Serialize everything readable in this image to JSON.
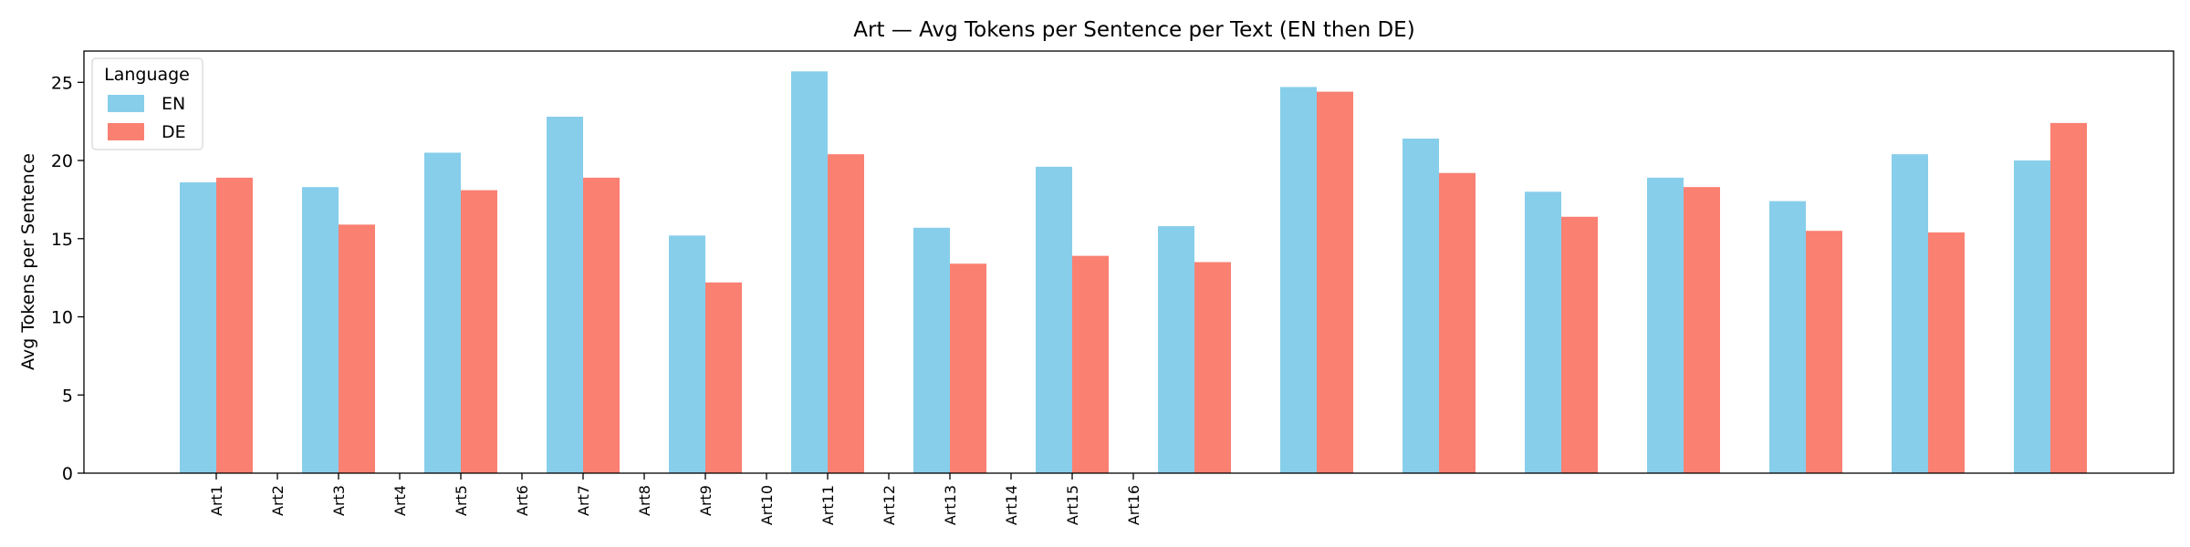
{
  "chart_data": {
    "type": "bar",
    "title": "Art — Avg Tokens per Sentence per Text (EN then DE)",
    "xlabel": "",
    "ylabel": "Avg Tokens per Sentence",
    "ylim": [
      0,
      27
    ],
    "yticks": [
      0,
      5,
      10,
      15,
      20,
      25
    ],
    "grid": false,
    "legend": {
      "title": "Language",
      "placement": "upper-left"
    },
    "categories": [
      "Art1",
      "Art2",
      "Art3",
      "Art4",
      "Art5",
      "Art6",
      "Art7",
      "Art8",
      "Art9",
      "Art10",
      "Art11",
      "Art12",
      "Art13",
      "Art14",
      "Art15",
      "Art16"
    ],
    "series": [
      {
        "name": "EN",
        "color": "#87CEEB",
        "values": [
          18.6,
          18.3,
          20.5,
          22.8,
          15.2,
          25.7,
          15.7,
          19.6,
          15.8,
          24.7,
          21.4,
          18.0,
          18.9,
          17.4,
          20.4,
          20.0
        ]
      },
      {
        "name": "DE",
        "color": "#FA8072",
        "values": [
          18.9,
          15.9,
          18.1,
          18.9,
          12.2,
          20.4,
          13.4,
          13.9,
          13.5,
          24.4,
          19.2,
          16.4,
          18.3,
          15.5,
          15.4,
          22.4
        ]
      }
    ]
  }
}
